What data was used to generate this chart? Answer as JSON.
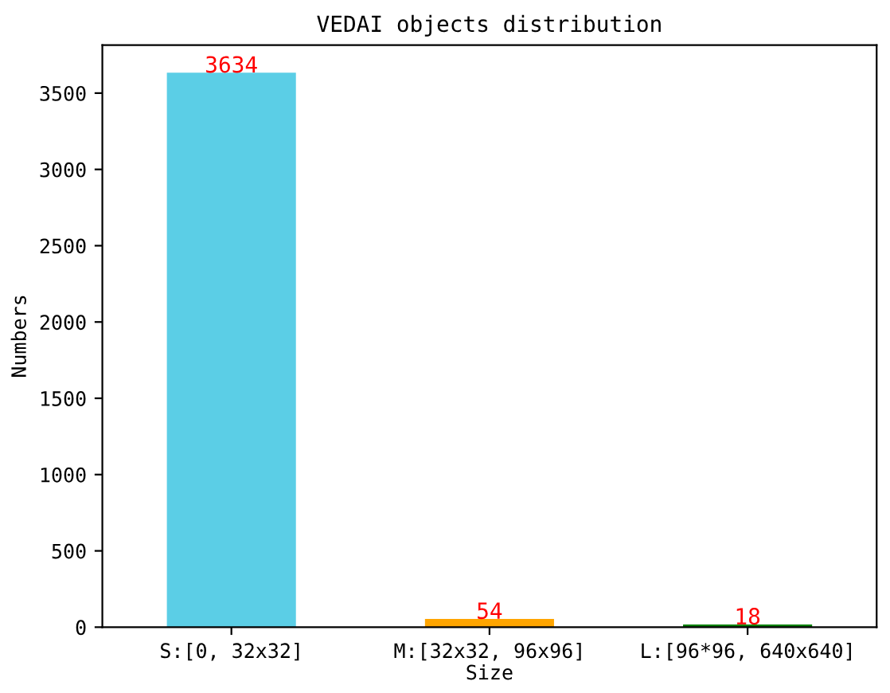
{
  "chart_data": {
    "type": "bar",
    "title": "VEDAI objects distribution",
    "xlabel": "Size",
    "ylabel": "Numbers",
    "categories": [
      "S:[0, 32x32]",
      "M:[32x32, 96x96]",
      "L:[96*96, 640x640]"
    ],
    "values": [
      3634,
      54,
      18
    ],
    "colors": [
      "#5bcee6",
      "#ffa500",
      "#008000"
    ],
    "ylim": [
      0,
      3815
    ],
    "yticks": [
      0,
      500,
      1000,
      1500,
      2000,
      2500,
      3000,
      3500
    ],
    "data_labels": true,
    "grid": false
  }
}
